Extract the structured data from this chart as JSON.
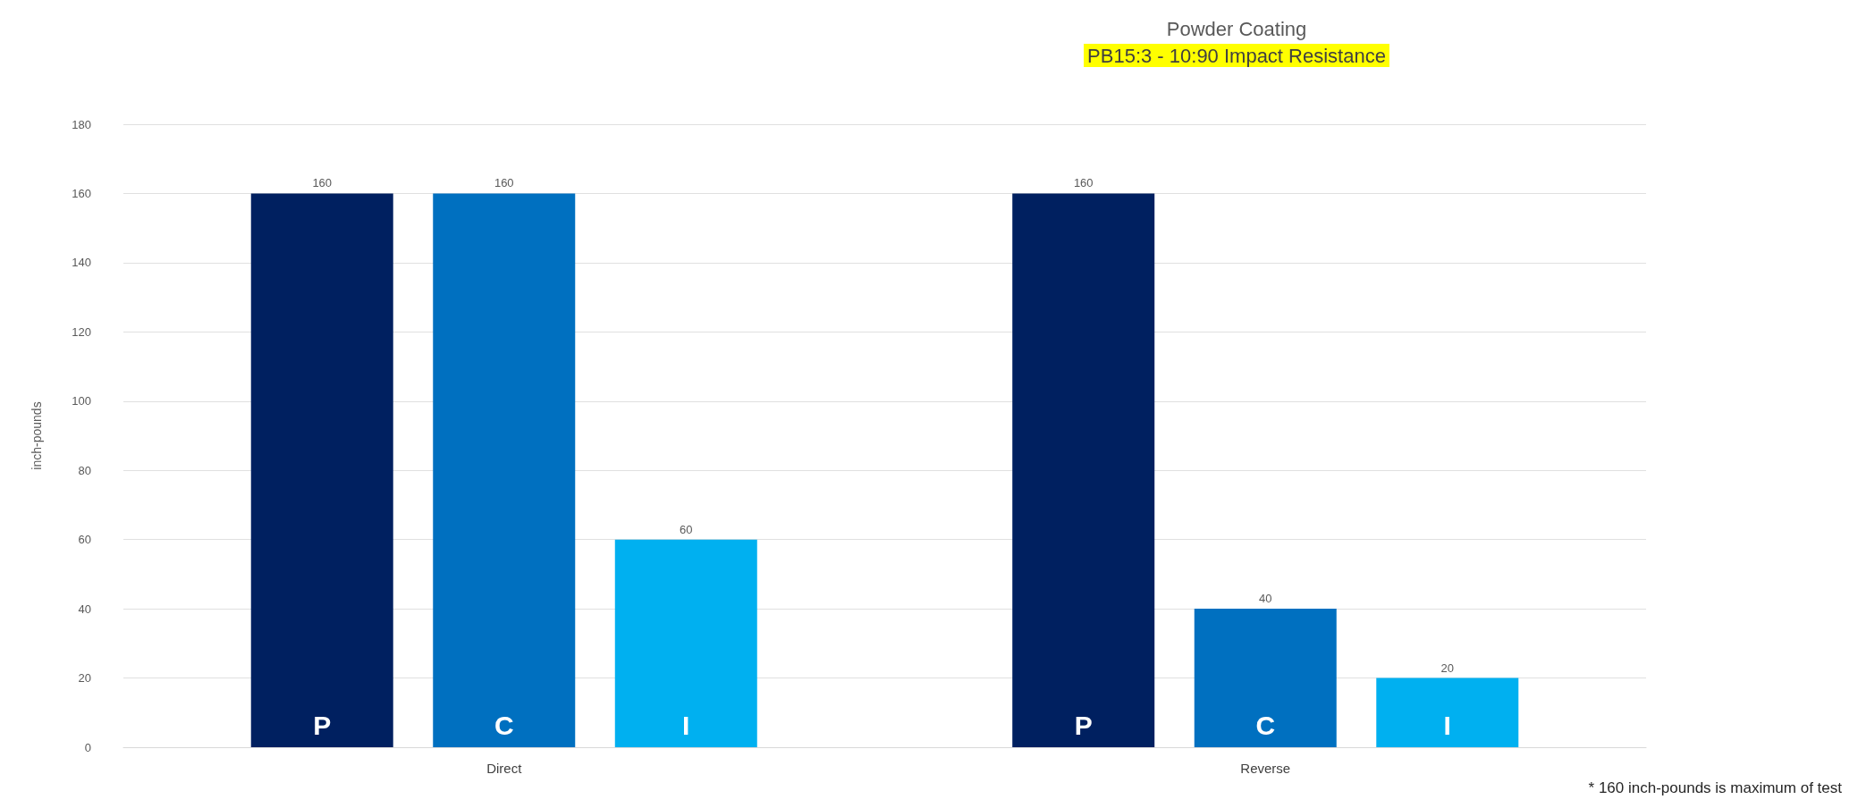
{
  "chart_data": {
    "type": "bar",
    "title": "Powder Coating",
    "subtitle": "PB15:3 - 10:90 Impact Resistance",
    "ylabel": "inch-pounds",
    "categories": [
      "Direct",
      "Reverse"
    ],
    "series": [
      {
        "name": "P",
        "color": "#002060",
        "values": [
          160,
          160
        ]
      },
      {
        "name": "C",
        "color": "#0070c0",
        "values": [
          160,
          40
        ]
      },
      {
        "name": "I",
        "color": "#00b0f0",
        "values": [
          60,
          20
        ]
      }
    ],
    "ylim": [
      0,
      180
    ],
    "yticks": [
      0,
      20,
      40,
      60,
      80,
      100,
      120,
      140,
      160,
      180
    ],
    "grid": "y",
    "legend": false,
    "data_labels": true,
    "annotations": [
      "* 160 inch-pounds is maximum of test"
    ]
  }
}
